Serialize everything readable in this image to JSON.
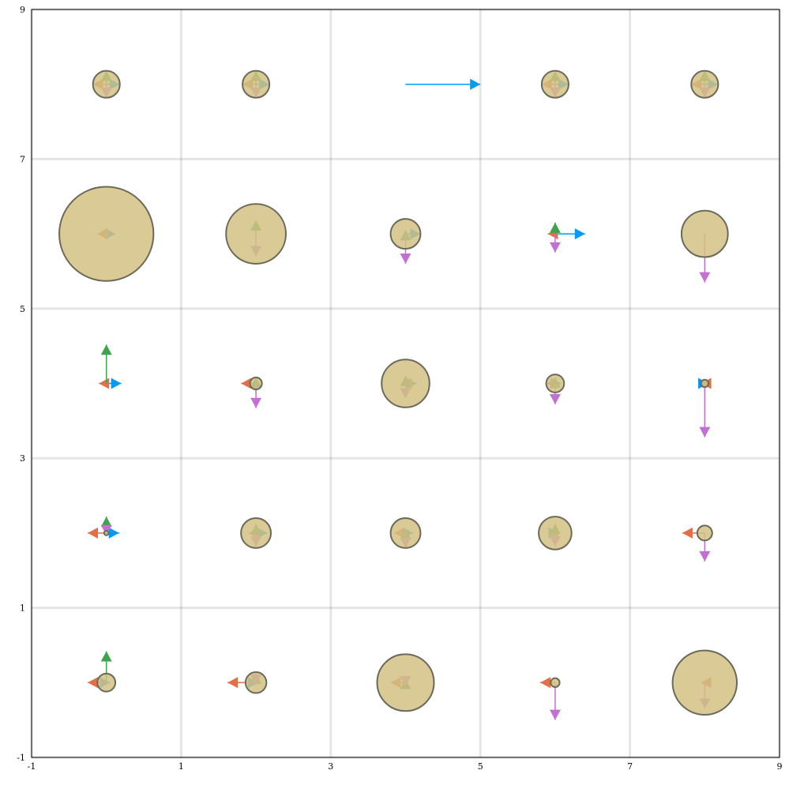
{
  "chart_data": {
    "type": "scatter",
    "title": "",
    "xlabel": "",
    "ylabel": "",
    "xlim": [
      -1,
      9
    ],
    "ylim": [
      -1,
      9
    ],
    "x_ticks": [
      "-1",
      "1",
      "3",
      "5",
      "7",
      "9"
    ],
    "y_ticks": [
      "-1",
      "1",
      "3",
      "5",
      "7",
      "9"
    ],
    "grid": true,
    "legend": "none",
    "colors": {
      "right": "#009af9",
      "left": "#e26f46",
      "up": "#3da44d",
      "down": "#c271d2",
      "circle_fill": "#d2c184",
      "circle_stroke": "#6b6a5a"
    },
    "cells": [
      {
        "x": 0,
        "y": 8,
        "r": 0.18,
        "right": 0.18,
        "left": 0.18,
        "up": 0.18,
        "down": 0.18
      },
      {
        "x": 2,
        "y": 8,
        "r": 0.18,
        "right": 0.18,
        "left": 0.18,
        "up": 0.18,
        "down": 0.18
      },
      {
        "x": 4,
        "y": 8,
        "r": 0,
        "right": 1.0,
        "left": 0,
        "up": 0,
        "down": 0
      },
      {
        "x": 6,
        "y": 8,
        "r": 0.18,
        "right": 0.18,
        "left": 0.18,
        "up": 0.18,
        "down": 0.18
      },
      {
        "x": 8,
        "y": 8,
        "r": 0.18,
        "right": 0.18,
        "left": 0.18,
        "up": 0.18,
        "down": 0.18
      },
      {
        "x": 0,
        "y": 6,
        "r": 0.63,
        "right": 0.12,
        "left": 0.12,
        "up": 0,
        "down": 0
      },
      {
        "x": 2,
        "y": 6,
        "r": 0.4,
        "right": 0,
        "left": 0,
        "up": 0.18,
        "down": 0.3
      },
      {
        "x": 4,
        "y": 6,
        "r": 0.2,
        "right": 0.2,
        "left": 0,
        "up": 0.05,
        "down": 0.4
      },
      {
        "x": 6,
        "y": 6,
        "r": 0,
        "right": 0.4,
        "left": 0.1,
        "up": 0.15,
        "down": 0.25
      },
      {
        "x": 8,
        "y": 6,
        "r": 0.31,
        "right": 0,
        "left": 0,
        "up": 0,
        "down": 0.65
      },
      {
        "x": 0,
        "y": 4,
        "r": 0,
        "right": 0.2,
        "left": 0.1,
        "up": 0.52,
        "down": 0
      },
      {
        "x": 2,
        "y": 4,
        "r": 0.08,
        "right": 0,
        "left": 0.2,
        "up": 0.08,
        "down": 0.33
      },
      {
        "x": 4,
        "y": 4,
        "r": 0.32,
        "right": 0.15,
        "left": 0.05,
        "up": 0.1,
        "down": 0.2
      },
      {
        "x": 6,
        "y": 4,
        "r": 0.12,
        "right": 0.08,
        "left": 0.12,
        "up": 0.08,
        "down": 0.28
      },
      {
        "x": 8,
        "y": 4,
        "r": 0.05,
        "right": 0.05,
        "left": 0.05,
        "up": 0,
        "down": 0.72
      },
      {
        "x": 0,
        "y": 2,
        "r": 0.03,
        "right": 0.17,
        "left": 0.25,
        "up": 0.22,
        "down": 0.03
      },
      {
        "x": 2,
        "y": 2,
        "r": 0.2,
        "right": 0.15,
        "left": 0.1,
        "up": 0.12,
        "down": 0.18
      },
      {
        "x": 4,
        "y": 2,
        "r": 0.2,
        "right": 0.1,
        "left": 0.15,
        "up": 0.05,
        "down": 0.2
      },
      {
        "x": 6,
        "y": 2,
        "r": 0.22,
        "right": 0.05,
        "left": 0.1,
        "up": 0.12,
        "down": 0.18
      },
      {
        "x": 8,
        "y": 2,
        "r": 0.1,
        "right": 0,
        "left": 0.3,
        "up": 0,
        "down": 0.38
      },
      {
        "x": 0,
        "y": 0,
        "r": 0.12,
        "right": 0.05,
        "left": 0.25,
        "up": 0.42,
        "down": 0
      },
      {
        "x": 2,
        "y": 0,
        "r": 0.14,
        "right": 0.03,
        "left": 0.38,
        "up": 0.12,
        "down": 0.03
      },
      {
        "x": 4,
        "y": 0,
        "r": 0.38,
        "right": 0,
        "left": 0.2,
        "up": 0.05,
        "down": 0.05
      },
      {
        "x": 6,
        "y": 0,
        "r": 0.06,
        "right": 0,
        "left": 0.2,
        "up": 0,
        "down": 0.5
      },
      {
        "x": 8,
        "y": 0,
        "r": 0.43,
        "right": 0,
        "left": 0.05,
        "up": 0,
        "down": 0.35
      }
    ]
  }
}
